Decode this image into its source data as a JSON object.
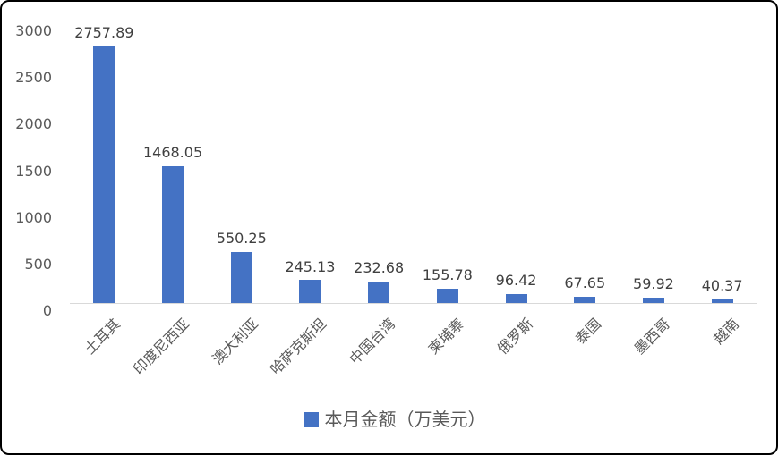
{
  "chart_data": {
    "type": "bar",
    "title": "",
    "categories": [
      "土耳其",
      "印度尼西亚",
      "澳大利亚",
      "哈萨克斯坦",
      "中国台湾",
      "柬埔寨",
      "俄罗斯",
      "泰国",
      "墨西哥",
      "越南"
    ],
    "values": [
      2757.89,
      1468.05,
      550.25,
      245.13,
      232.68,
      155.78,
      96.42,
      67.65,
      59.92,
      40.37
    ],
    "data_labels": [
      "2757.89",
      "1468.05",
      "550.25",
      "245.13",
      "232.68",
      "155.78",
      "96.42",
      "67.65",
      "59.92",
      "40.37"
    ],
    "series_name": "本月金额（万美元）",
    "legend": "本月金额（万美元）",
    "legend_position": "bottom",
    "xlabel": "",
    "ylabel": "",
    "ylim": [
      0,
      3000
    ],
    "yticks": [
      0,
      500,
      1000,
      1500,
      2000,
      2500,
      3000
    ],
    "grid": false,
    "bar_color": "#4472C4"
  },
  "colors": {
    "bar": "#4472C4",
    "axis_line": "#d9d9d9",
    "tick_label": "#595959",
    "data_label": "#404040",
    "category_label": "#595959",
    "legend_text": "#595959",
    "border": "#000000",
    "background": "#ffffff"
  }
}
